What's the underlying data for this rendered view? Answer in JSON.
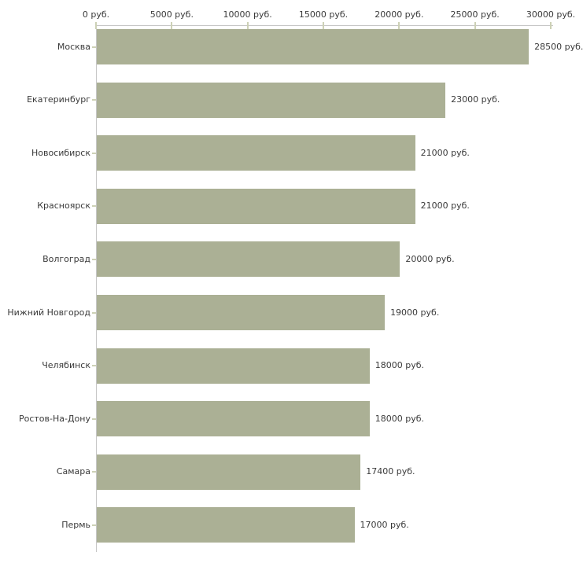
{
  "chart_data": {
    "type": "bar",
    "orientation": "horizontal",
    "title": "",
    "xlabel": "",
    "ylabel": "",
    "unit": "руб.",
    "categories": [
      "Москва",
      "Екатеринбург",
      "Новосибирск",
      "Красноярск",
      "Волгоград",
      "Нижний Новгород",
      "Челябинск",
      "Ростов-На-Дону",
      "Самара",
      "Пермь"
    ],
    "values": [
      28500,
      23000,
      21000,
      21000,
      20000,
      19000,
      18000,
      18000,
      17400,
      17000
    ],
    "value_labels": [
      "28500 руб.",
      "23000 руб.",
      "21000 руб.",
      "21000 руб.",
      "20000 руб.",
      "19000 руб.",
      "18000 руб.",
      "18000 руб.",
      "17400 руб.",
      "17000 руб."
    ],
    "x_ticks": [
      0,
      5000,
      10000,
      15000,
      20000,
      25000,
      30000
    ],
    "x_tick_labels": [
      "0 руб.",
      "5000 руб.",
      "10000 руб.",
      "15000 руб.",
      "20000 руб.",
      "25000 руб.",
      "30000 руб."
    ],
    "xlim": [
      0,
      30000
    ],
    "grid": false,
    "legend": false,
    "axis_position": "top",
    "colors": {
      "bar": "#abb095",
      "axis_line": "#c6c6c6",
      "tick_mark": "#cdd1b6",
      "text": "#3a3a3a",
      "background": "#ffffff"
    }
  }
}
